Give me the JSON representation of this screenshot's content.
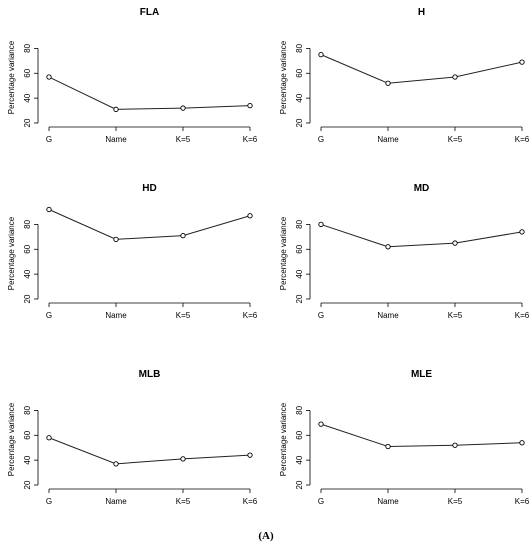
{
  "figure": {
    "caption": "(A)"
  },
  "chart_data": [
    {
      "type": "line",
      "title": "FLA",
      "xlabel": "",
      "ylabel": "Percentage variance",
      "categories": [
        "G",
        "Name",
        "K=5",
        "K=6"
      ],
      "values": [
        57,
        31,
        32,
        34
      ],
      "ylim": [
        20,
        90
      ],
      "yticks": [
        20,
        40,
        60,
        80
      ],
      "grid": false
    },
    {
      "type": "line",
      "title": "H",
      "xlabel": "",
      "ylabel": "Percentage variance",
      "categories": [
        "G",
        "Name",
        "K=5",
        "K=6"
      ],
      "values": [
        75,
        52,
        57,
        69
      ],
      "ylim": [
        20,
        90
      ],
      "yticks": [
        20,
        40,
        60,
        80
      ],
      "grid": false
    },
    {
      "type": "line",
      "title": "HD",
      "xlabel": "",
      "ylabel": "Percentage variance",
      "categories": [
        "G",
        "Name",
        "K=5",
        "K=6"
      ],
      "values": [
        92,
        68,
        71,
        87
      ],
      "ylim": [
        20,
        90
      ],
      "yticks": [
        20,
        40,
        60,
        80
      ],
      "grid": false
    },
    {
      "type": "line",
      "title": "MD",
      "xlabel": "",
      "ylabel": "Percentage variance",
      "categories": [
        "G",
        "Name",
        "K=5",
        "K=6"
      ],
      "values": [
        80,
        62,
        65,
        74
      ],
      "ylim": [
        20,
        90
      ],
      "yticks": [
        20,
        40,
        60,
        80
      ],
      "grid": false
    },
    {
      "type": "line",
      "title": "MLB",
      "xlabel": "",
      "ylabel": "Percentage variance",
      "categories": [
        "G",
        "Name",
        "K=5",
        "K=6"
      ],
      "values": [
        58,
        37,
        41,
        44
      ],
      "ylim": [
        20,
        90
      ],
      "yticks": [
        20,
        40,
        60,
        80
      ],
      "grid": false
    },
    {
      "type": "line",
      "title": "MLE",
      "xlabel": "",
      "ylabel": "Percentage variance",
      "categories": [
        "G",
        "Name",
        "K=5",
        "K=6"
      ],
      "values": [
        69,
        51,
        52,
        54
      ],
      "ylim": [
        20,
        90
      ],
      "yticks": [
        20,
        40,
        60,
        80
      ],
      "grid": false
    }
  ]
}
